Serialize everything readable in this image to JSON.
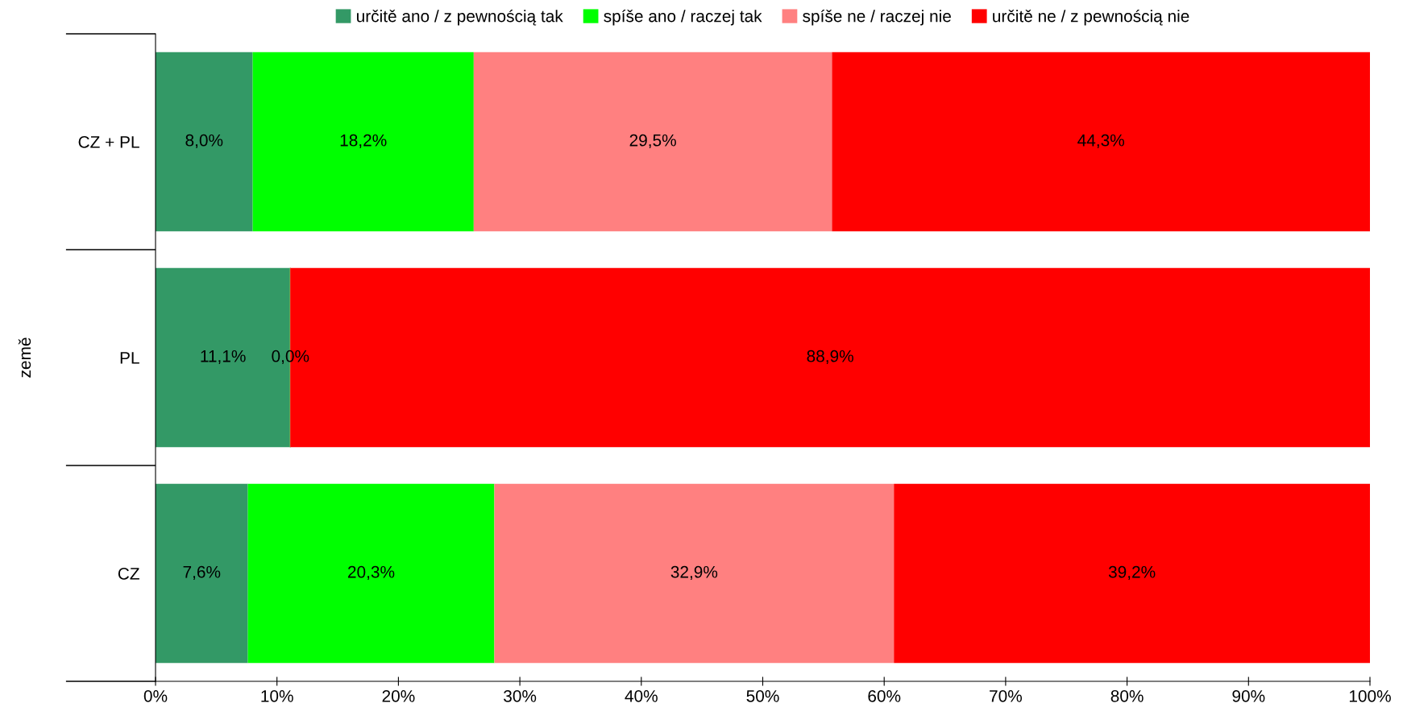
{
  "chart_data": {
    "type": "bar",
    "orientation": "horizontal",
    "stacked": true,
    "ylabel": "země",
    "categories": [
      "CZ + PL",
      "PL",
      "CZ"
    ],
    "series": [
      {
        "name": "určitě ano / z pewnością tak",
        "color": "#339966",
        "values": [
          8.0,
          11.1,
          7.6
        ],
        "value_labels": [
          "8,0%",
          "11,1%",
          "7,6%"
        ]
      },
      {
        "name": "spíše ano / raczej tak",
        "color": "#00ff00",
        "values": [
          18.2,
          0.0,
          20.3
        ],
        "value_labels": [
          "18,2%",
          "0,0%",
          "20,3%"
        ]
      },
      {
        "name": "spíše ne / raczej nie",
        "color": "#ff8080",
        "values": [
          29.5,
          0.0,
          32.9
        ],
        "value_labels": [
          "29,5%",
          null,
          "32,9%"
        ]
      },
      {
        "name": "určitě ne / z pewnością nie",
        "color": "#ff0000",
        "values": [
          44.3,
          88.9,
          39.2
        ],
        "value_labels": [
          "44,3%",
          "88,9%",
          "39,2%"
        ]
      }
    ],
    "xlim": [
      0,
      100
    ],
    "xticks": [
      {
        "value": 0,
        "label": "0%"
      },
      {
        "value": 10,
        "label": "10%"
      },
      {
        "value": 20,
        "label": "20%"
      },
      {
        "value": 30,
        "label": "30%"
      },
      {
        "value": 40,
        "label": "40%"
      },
      {
        "value": 50,
        "label": "50%"
      },
      {
        "value": 60,
        "label": "60%"
      },
      {
        "value": 70,
        "label": "70%"
      },
      {
        "value": 80,
        "label": "80%"
      },
      {
        "value": 90,
        "label": "90%"
      },
      {
        "value": 100,
        "label": "100%"
      }
    ],
    "grid": false,
    "legend": "top"
  }
}
